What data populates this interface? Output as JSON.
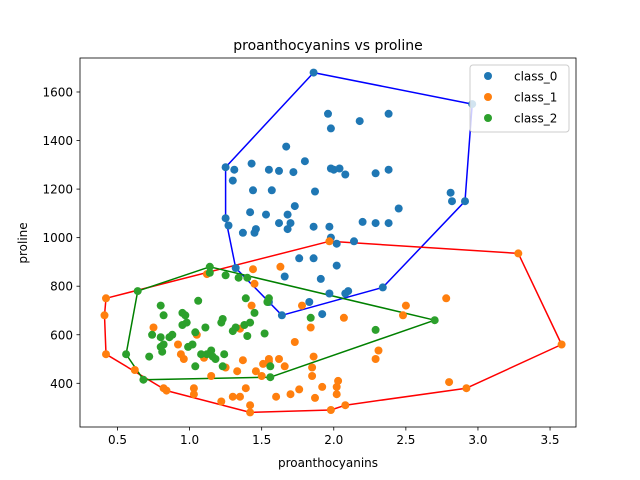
{
  "chart_data": {
    "type": "scatter",
    "title": "proanthocyanins vs proline",
    "xlabel": "proanthocyanins",
    "ylabel": "proline",
    "xlim": [
      0.24,
      3.68
    ],
    "ylim": [
      220,
      1740
    ],
    "xticks": [
      "0.5",
      "1.0",
      "1.5",
      "2.0",
      "2.5",
      "3.0",
      "3.5"
    ],
    "yticks": [
      "400",
      "600",
      "800",
      "1000",
      "1200",
      "1400",
      "1600"
    ],
    "xtick_values": [
      0.5,
      1.0,
      1.5,
      2.0,
      2.5,
      3.0,
      3.5
    ],
    "ytick_values": [
      400,
      600,
      800,
      1000,
      1200,
      1400,
      1600
    ],
    "grid": false,
    "legend_position": "top-right",
    "series": [
      {
        "name": "class_0",
        "color": "#1f77b4",
        "hull_color": "#0000ff",
        "points": [
          [
            1.86,
            1680
          ],
          [
            1.96,
            1510
          ],
          [
            2.38,
            1510
          ],
          [
            2.96,
            1550
          ],
          [
            1.98,
            1450
          ],
          [
            2.18,
            1480
          ],
          [
            1.67,
            1375
          ],
          [
            1.8,
            1315
          ],
          [
            1.25,
            1290
          ],
          [
            1.31,
            1280
          ],
          [
            1.43,
            1305
          ],
          [
            1.55,
            1280
          ],
          [
            1.62,
            1275
          ],
          [
            1.72,
            1270
          ],
          [
            1.98,
            1285
          ],
          [
            2.0,
            1280
          ],
          [
            2.04,
            1285
          ],
          [
            2.08,
            1260
          ],
          [
            2.29,
            1265
          ],
          [
            2.38,
            1280
          ],
          [
            1.3,
            1235
          ],
          [
            1.44,
            1195
          ],
          [
            1.57,
            1195
          ],
          [
            1.87,
            1190
          ],
          [
            2.81,
            1185
          ],
          [
            2.82,
            1150
          ],
          [
            2.91,
            1150
          ],
          [
            1.73,
            1130
          ],
          [
            1.42,
            1105
          ],
          [
            1.53,
            1095
          ],
          [
            1.68,
            1095
          ],
          [
            1.25,
            1080
          ],
          [
            2.45,
            1120
          ],
          [
            1.27,
            1050
          ],
          [
            1.62,
            1060
          ],
          [
            1.7,
            1060
          ],
          [
            1.86,
            1045
          ],
          [
            1.97,
            1045
          ],
          [
            2.2,
            1065
          ],
          [
            2.29,
            1060
          ],
          [
            2.38,
            1060
          ],
          [
            1.46,
            1035
          ],
          [
            1.37,
            1020
          ],
          [
            1.45,
            1020
          ],
          [
            1.68,
            1035
          ],
          [
            1.98,
            1000
          ],
          [
            2.02,
            975
          ],
          [
            2.14,
            985
          ],
          [
            1.32,
            875
          ],
          [
            1.66,
            840
          ],
          [
            1.76,
            915
          ],
          [
            1.86,
            915
          ],
          [
            1.91,
            830
          ],
          [
            2.02,
            885
          ],
          [
            1.97,
            770
          ],
          [
            2.08,
            770
          ],
          [
            2.1,
            780
          ],
          [
            2.34,
            795
          ],
          [
            1.55,
            735
          ],
          [
            1.64,
            680
          ],
          [
            1.83,
            735
          ],
          [
            1.92,
            685
          ]
        ],
        "hull": [
          [
            1.86,
            1680
          ],
          [
            2.96,
            1550
          ],
          [
            2.91,
            1150
          ],
          [
            2.34,
            795
          ],
          [
            1.64,
            680
          ],
          [
            1.32,
            875
          ],
          [
            1.25,
            1080
          ],
          [
            1.25,
            1290
          ]
        ]
      },
      {
        "name": "class_1",
        "color": "#ff7f0e",
        "hull_color": "#ff0000",
        "points": [
          [
            1.97,
            985
          ],
          [
            3.28,
            935
          ],
          [
            3.58,
            560
          ],
          [
            2.92,
            380
          ],
          [
            2.78,
            750
          ],
          [
            2.8,
            405
          ],
          [
            2.5,
            720
          ],
          [
            2.48,
            680
          ],
          [
            2.29,
            500
          ],
          [
            2.31,
            535
          ],
          [
            2.07,
            670
          ],
          [
            2.08,
            310
          ],
          [
            1.98,
            290
          ],
          [
            2.02,
            385
          ],
          [
            2.03,
            410
          ],
          [
            2.02,
            355
          ],
          [
            1.92,
            385
          ],
          [
            1.85,
            430
          ],
          [
            1.85,
            465
          ],
          [
            1.86,
            510
          ],
          [
            1.87,
            340
          ],
          [
            1.84,
            630
          ],
          [
            1.78,
            720
          ],
          [
            1.76,
            375
          ],
          [
            1.73,
            570
          ],
          [
            1.7,
            355
          ],
          [
            1.66,
            470
          ],
          [
            1.63,
            880
          ],
          [
            1.62,
            500
          ],
          [
            1.6,
            345
          ],
          [
            1.55,
            490
          ],
          [
            1.55,
            500
          ],
          [
            1.51,
            480
          ],
          [
            1.5,
            430
          ],
          [
            1.46,
            450
          ],
          [
            1.45,
            810
          ],
          [
            1.44,
            870
          ],
          [
            1.43,
            720
          ],
          [
            1.42,
            310
          ],
          [
            1.42,
            280
          ],
          [
            1.39,
            380
          ],
          [
            1.37,
            495
          ],
          [
            1.35,
            625
          ],
          [
            1.35,
            345
          ],
          [
            1.33,
            450
          ],
          [
            1.3,
            345
          ],
          [
            1.25,
            465
          ],
          [
            1.22,
            325
          ],
          [
            1.15,
            430
          ],
          [
            1.12,
            850
          ],
          [
            1.1,
            505
          ],
          [
            1.05,
            600
          ],
          [
            1.03,
            355
          ],
          [
            1.03,
            380
          ],
          [
            0.96,
            500
          ],
          [
            0.94,
            520
          ],
          [
            0.92,
            560
          ],
          [
            0.84,
            370
          ],
          [
            0.82,
            380
          ],
          [
            0.75,
            630
          ],
          [
            0.62,
            455
          ],
          [
            0.42,
            750
          ],
          [
            0.42,
            520
          ],
          [
            0.41,
            680
          ]
        ],
        "hull": [
          [
            1.97,
            985
          ],
          [
            3.28,
            935
          ],
          [
            3.58,
            560
          ],
          [
            2.92,
            380
          ],
          [
            2.08,
            310
          ],
          [
            1.98,
            290
          ],
          [
            1.42,
            280
          ],
          [
            0.84,
            370
          ],
          [
            0.42,
            520
          ],
          [
            0.41,
            680
          ],
          [
            0.42,
            750
          ]
        ]
      },
      {
        "name": "class_2",
        "color": "#2ca02c",
        "hull_color": "#008000",
        "points": [
          [
            1.14,
            880
          ],
          [
            1.14,
            855
          ],
          [
            1.25,
            845
          ],
          [
            1.34,
            835
          ],
          [
            1.4,
            835
          ],
          [
            0.64,
            780
          ],
          [
            1.39,
            750
          ],
          [
            1.55,
            750
          ],
          [
            1.54,
            735
          ],
          [
            0.8,
            720
          ],
          [
            0.82,
            680
          ],
          [
            0.74,
            600
          ],
          [
            0.8,
            590
          ],
          [
            0.82,
            560
          ],
          [
            0.86,
            590
          ],
          [
            0.88,
            600
          ],
          [
            0.95,
            640
          ],
          [
            0.95,
            690
          ],
          [
            0.98,
            650
          ],
          [
            0.97,
            680
          ],
          [
            1.06,
            740
          ],
          [
            1.11,
            630
          ],
          [
            1.22,
            650
          ],
          [
            1.23,
            665
          ],
          [
            1.3,
            615
          ],
          [
            1.4,
            595
          ],
          [
            1.42,
            650
          ],
          [
            1.45,
            690
          ],
          [
            1.52,
            605
          ],
          [
            1.38,
            640
          ],
          [
            1.32,
            630
          ],
          [
            1.04,
            610
          ],
          [
            1.08,
            520
          ],
          [
            1.12,
            520
          ],
          [
            1.15,
            535
          ],
          [
            1.16,
            510
          ],
          [
            1.18,
            500
          ],
          [
            1.23,
            470
          ],
          [
            1.24,
            520
          ],
          [
            1.04,
            470
          ],
          [
            1.02,
            560
          ],
          [
            0.99,
            550
          ],
          [
            0.8,
            550
          ],
          [
            0.81,
            530
          ],
          [
            0.72,
            510
          ],
          [
            0.56,
            520
          ],
          [
            0.68,
            415
          ],
          [
            1.56,
            470
          ],
          [
            1.56,
            425
          ],
          [
            1.84,
            670
          ],
          [
            2.29,
            620
          ],
          [
            2.7,
            660
          ]
        ],
        "hull": [
          [
            0.64,
            780
          ],
          [
            1.14,
            880
          ],
          [
            2.7,
            660
          ],
          [
            1.56,
            425
          ],
          [
            0.68,
            415
          ],
          [
            0.56,
            520
          ]
        ]
      }
    ]
  }
}
